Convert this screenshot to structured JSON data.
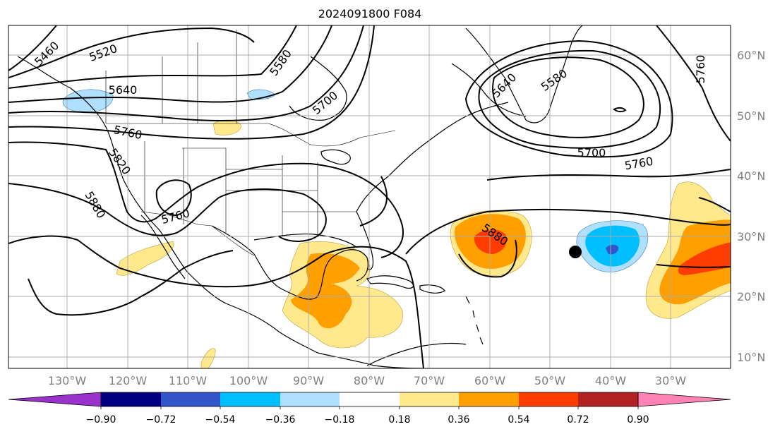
{
  "title": "2024091800 F084",
  "lon_labels": [
    "130°W",
    "120°W",
    "110°W",
    "100°W",
    "90°W",
    "80°W",
    "70°W",
    "60°W",
    "50°W",
    "40°W",
    "30°W"
  ],
  "lat_labels": [
    "60°N",
    "50°N",
    "40°N",
    "30°N",
    "20°N",
    "10°N"
  ],
  "colorbar": {
    "colors": [
      "#9933cc",
      "#000080",
      "#3355cc",
      "#00bfff",
      "#b0e0ff",
      "#ffffff",
      "#ffe98c",
      "#ff9f00",
      "#ff3c00",
      "#b22222",
      "#ff82b4"
    ],
    "ticks": [
      "−0.90",
      "−0.72",
      "−0.54",
      "−0.36",
      "−0.18",
      "0.18",
      "0.36",
      "0.54",
      "0.72",
      "0.90"
    ]
  },
  "contour_labels": [
    "5460",
    "5520",
    "5580",
    "5640",
    "5700",
    "5760",
    "5820",
    "5880",
    "5760",
    "5880",
    "5640",
    "5580",
    "5700",
    "5760",
    "5760"
  ],
  "colors": {
    "land_line": "#000000",
    "grid": "#aaaaaa"
  }
}
